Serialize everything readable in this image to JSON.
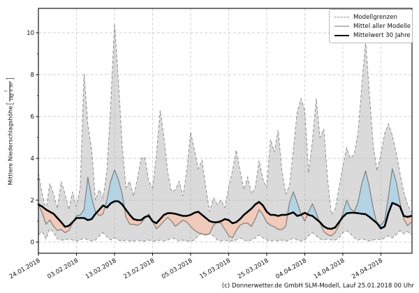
{
  "figure": {
    "footer": "(c) Donnerwetter.de GmbH SLM-Modell, Lauf 25.01.2018 00 Uhr"
  },
  "legend": {
    "items": [
      {
        "label": "Modellgrenzen",
        "style": "dashed-gray"
      },
      {
        "label": "Mittel aller Modelle",
        "style": "solid-gray"
      },
      {
        "label": "Mittelwert 30 Jahre",
        "style": "solid-black-thick"
      }
    ]
  },
  "y_axis_label": {
    "text": "Mittlere Niederschlagshöhe",
    "bracket_open": "[",
    "fraction_numerator": "l",
    "fraction_denominator": "Tag × m²",
    "bracket_close": "]"
  },
  "chart_data": {
    "type": "line",
    "title": "",
    "xlabel": "",
    "ylabel": "Mittlere Niederschlagshöhe [l/(Tag × m²)]",
    "grid": true,
    "legend_position": "upper right",
    "x_unit": "day",
    "x_start_date": "24.01.2018",
    "x_tick_labels": [
      "24.01.2018",
      "03.02.2018",
      "13.02.2018",
      "23.02.2018",
      "05.03.2018",
      "15.03.2018",
      "25.03.2018",
      "04.04.2018",
      "14.04.2018",
      "24.04.2018"
    ],
    "x_tick_day_indices": [
      0,
      10,
      20,
      30,
      40,
      50,
      60,
      70,
      80,
      90
    ],
    "y_ticks": [
      0,
      2,
      4,
      6,
      8,
      10
    ],
    "y_minor_ticks": [
      1,
      3,
      5,
      7,
      9
    ],
    "ylim": [
      -0.53,
      11.17
    ],
    "colors": {
      "envelope_fill": "rgba(173,173,173,0.45)",
      "envelope_border": "#8f8f8f",
      "above_normal_fill": "#aed3e7",
      "below_normal_fill": "#f2c7b5",
      "model_mean_line": "#7f7f7f",
      "mean30_line": "#000000",
      "grid_line": "#cfcfcf",
      "frame": "#000000",
      "text": "#101010"
    },
    "series": [
      {
        "name": "Modellgrenzen (oben/max)",
        "role": "envelope_max",
        "values": [
          3.3,
          2.3,
          1.55,
          2.8,
          2.3,
          1.6,
          2.9,
          2.3,
          1.55,
          2.4,
          1.7,
          2.6,
          8.05,
          5.6,
          4.4,
          2.0,
          2.5,
          2.1,
          3.4,
          6.5,
          10.45,
          7.8,
          4.6,
          2.6,
          2.9,
          2.2,
          3.0,
          4.0,
          4.05,
          2.9,
          2.6,
          4.1,
          6.3,
          5.0,
          3.3,
          2.4,
          2.5,
          2.9,
          2.2,
          3.4,
          5.25,
          4.4,
          3.5,
          3.9,
          2.6,
          1.45,
          2.1,
          1.8,
          2.0,
          1.65,
          2.6,
          3.4,
          4.4,
          3.4,
          2.5,
          3.1,
          2.3,
          2.6,
          3.9,
          3.0,
          2.6,
          4.9,
          4.3,
          5.35,
          3.4,
          2.3,
          2.7,
          4.4,
          6.2,
          6.85,
          6.3,
          3.3,
          4.8,
          6.85,
          5.0,
          5.4,
          3.0,
          1.3,
          1.6,
          2.6,
          3.6,
          4.5,
          4.0,
          4.2,
          5.2,
          7.5,
          9.6,
          7.0,
          4.6,
          3.4,
          4.2,
          5.2,
          5.65,
          5.1,
          4.3,
          3.3,
          2.4,
          1.8,
          1.45
        ]
      },
      {
        "name": "Modellgrenzen (unten/min)",
        "role": "envelope_min",
        "values": [
          0.35,
          0.5,
          0.15,
          0.65,
          0.45,
          0.15,
          0.1,
          0.1,
          0.15,
          0.1,
          0.05,
          0.1,
          0.2,
          0.1,
          0.05,
          0.1,
          0.3,
          0.45,
          0.25,
          0.1,
          0.2,
          0.1,
          0.05,
          0.1,
          0.05,
          0.05,
          0.1,
          0.05,
          0.05,
          0.1,
          0.05,
          0.05,
          0.1,
          0.05,
          0.1,
          0.2,
          0.15,
          0.05,
          0.1,
          0.05,
          0.05,
          0.1,
          0.3,
          0.45,
          0.3,
          0.4,
          0.3,
          0.1,
          0.05,
          0.1,
          0.05,
          0.05,
          0.1,
          0.2,
          0.1,
          0.05,
          0.1,
          0.2,
          0.35,
          0.2,
          0.1,
          0.05,
          0.1,
          0.05,
          0.1,
          0.05,
          0.1,
          0.2,
          0.1,
          0.05,
          0.1,
          0.3,
          0.45,
          0.3,
          0.15,
          0.1,
          0.15,
          0.1,
          0.1,
          0.2,
          0.45,
          0.55,
          0.4,
          0.2,
          0.1,
          0.15,
          0.1,
          0.05,
          0.1,
          0.15,
          0.1,
          0.2,
          0.3,
          0.2,
          0.35,
          0.55,
          0.4,
          0.5,
          0.35
        ]
      },
      {
        "name": "Mittel aller Modelle",
        "role": "model_mean",
        "values": [
          1.8,
          1.4,
          0.85,
          1.05,
          0.75,
          0.55,
          0.6,
          0.45,
          0.55,
          0.9,
          1.25,
          1.3,
          1.55,
          3.1,
          2.1,
          1.45,
          1.25,
          1.35,
          2.0,
          2.9,
          3.45,
          3.0,
          2.3,
          1.2,
          0.85,
          0.85,
          0.8,
          0.9,
          1.15,
          1.35,
          1.0,
          0.63,
          0.8,
          1.0,
          1.18,
          1.0,
          0.75,
          0.9,
          1.05,
          0.95,
          0.75,
          0.57,
          0.45,
          0.38,
          0.35,
          0.4,
          0.8,
          0.95,
          0.9,
          0.6,
          0.3,
          0.2,
          0.55,
          0.8,
          0.9,
          0.9,
          0.75,
          1.1,
          1.55,
          1.3,
          0.95,
          0.8,
          0.73,
          0.6,
          0.6,
          0.75,
          1.9,
          2.4,
          1.9,
          1.35,
          1.0,
          1.45,
          1.83,
          1.4,
          0.9,
          0.5,
          0.35,
          0.3,
          0.45,
          0.8,
          1.35,
          2.0,
          1.6,
          1.45,
          1.9,
          2.8,
          3.4,
          2.6,
          1.6,
          0.85,
          0.8,
          1.05,
          2.2,
          3.5,
          2.9,
          1.9,
          1.1,
          0.78,
          0.95
        ]
      },
      {
        "name": "Mittelwert 30 Jahre",
        "role": "mean30",
        "values": [
          1.8,
          1.7,
          1.55,
          1.45,
          1.35,
          1.15,
          0.95,
          0.73,
          0.78,
          0.95,
          1.15,
          1.15,
          1.15,
          1.05,
          1.1,
          1.35,
          1.55,
          1.75,
          1.65,
          1.85,
          1.95,
          1.95,
          1.8,
          1.55,
          1.3,
          1.1,
          1.05,
          1.05,
          1.2,
          1.25,
          1.0,
          0.9,
          1.1,
          1.3,
          1.38,
          1.38,
          1.35,
          1.3,
          1.25,
          1.25,
          1.3,
          1.4,
          1.45,
          1.3,
          1.15,
          1.0,
          0.95,
          0.95,
          1.0,
          1.1,
          1.05,
          0.9,
          0.95,
          1.1,
          1.3,
          1.45,
          1.6,
          1.8,
          1.92,
          1.75,
          1.45,
          1.3,
          1.3,
          1.25,
          1.3,
          1.3,
          1.35,
          1.42,
          1.25,
          1.3,
          1.4,
          1.3,
          1.25,
          1.1,
          0.95,
          0.75,
          0.65,
          0.63,
          0.7,
          0.95,
          1.2,
          1.37,
          1.4,
          1.4,
          1.38,
          1.35,
          1.33,
          1.2,
          1.05,
          0.9,
          0.65,
          0.75,
          1.4,
          1.87,
          1.8,
          1.7,
          1.25,
          1.2,
          1.25
        ]
      }
    ]
  }
}
